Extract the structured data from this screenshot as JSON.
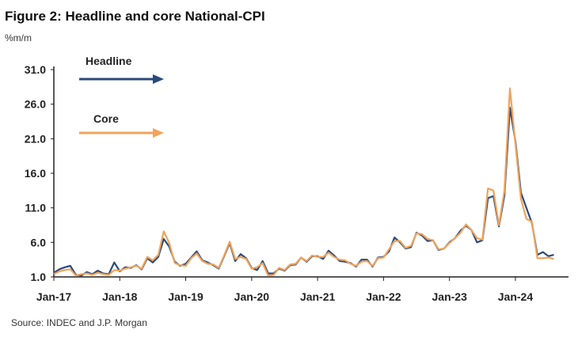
{
  "chart_data": {
    "type": "line",
    "title": "Figure 2: Headline and core National-CPI",
    "ylabel": "%m/m",
    "source": "Source: INDEC and J.P. Morgan",
    "ylim": [
      1,
      31
    ],
    "yticks": [
      "1.0",
      "6.0",
      "11.0",
      "16.0",
      "21.0",
      "26.0",
      "31.0"
    ],
    "xticks": [
      "Jan-17",
      "Jan-18",
      "Jan-19",
      "Jan-20",
      "Jan-21",
      "Jan-22",
      "Jan-23",
      "Jan-24"
    ],
    "x_start": "Jan-17",
    "frequency": "monthly",
    "series": [
      {
        "name": "Headline",
        "color": "#2b4a7a",
        "values": [
          1.6,
          2.1,
          2.4,
          2.6,
          1.3,
          1.2,
          1.7,
          1.4,
          1.9,
          1.5,
          1.4,
          3.1,
          1.8,
          2.4,
          2.3,
          2.7,
          2.1,
          3.7,
          3.1,
          3.9,
          6.5,
          5.4,
          3.2,
          2.6,
          2.9,
          3.8,
          4.7,
          3.4,
          3.1,
          2.7,
          2.2,
          4.0,
          5.9,
          3.3,
          4.3,
          3.7,
          2.3,
          2.0,
          3.3,
          1.5,
          1.5,
          2.2,
          1.9,
          2.7,
          2.8,
          3.8,
          3.2,
          4.0,
          4.0,
          3.6,
          4.8,
          4.1,
          3.3,
          3.2,
          3.0,
          2.5,
          3.5,
          3.5,
          2.5,
          3.8,
          3.9,
          4.7,
          6.7,
          6.0,
          5.1,
          5.3,
          7.4,
          7.0,
          6.2,
          6.3,
          4.9,
          5.1,
          6.0,
          6.6,
          7.7,
          8.4,
          7.8,
          6.0,
          6.3,
          12.4,
          12.7,
          8.3,
          12.8,
          25.5,
          20.6,
          13.2,
          11.0,
          8.8,
          4.2,
          4.6,
          4.0,
          4.2
        ]
      },
      {
        "name": "Core",
        "color": "#f0a35a",
        "values": [
          1.4,
          1.8,
          2.0,
          2.1,
          1.2,
          1.4,
          1.5,
          1.3,
          1.6,
          1.4,
          1.3,
          2.0,
          1.9,
          2.2,
          2.4,
          2.6,
          2.2,
          3.9,
          3.4,
          4.2,
          7.6,
          5.9,
          3.0,
          2.7,
          2.6,
          3.7,
          4.4,
          3.3,
          2.9,
          2.8,
          2.3,
          4.1,
          6.1,
          3.6,
          3.9,
          3.6,
          2.2,
          2.4,
          3.0,
          1.2,
          1.3,
          2.3,
          2.0,
          2.8,
          2.9,
          3.8,
          3.3,
          4.1,
          3.9,
          3.9,
          4.5,
          3.9,
          3.5,
          3.4,
          2.9,
          2.6,
          3.2,
          3.3,
          2.6,
          3.7,
          3.8,
          5.0,
          6.2,
          6.2,
          5.2,
          5.5,
          7.3,
          7.2,
          6.5,
          6.3,
          5.0,
          5.1,
          5.9,
          6.6,
          7.4,
          8.6,
          7.8,
          6.6,
          6.4,
          13.8,
          13.5,
          8.5,
          13.5,
          28.3,
          20.2,
          12.3,
          9.4,
          9.0,
          3.7,
          3.7,
          3.8,
          3.6
        ]
      }
    ]
  }
}
